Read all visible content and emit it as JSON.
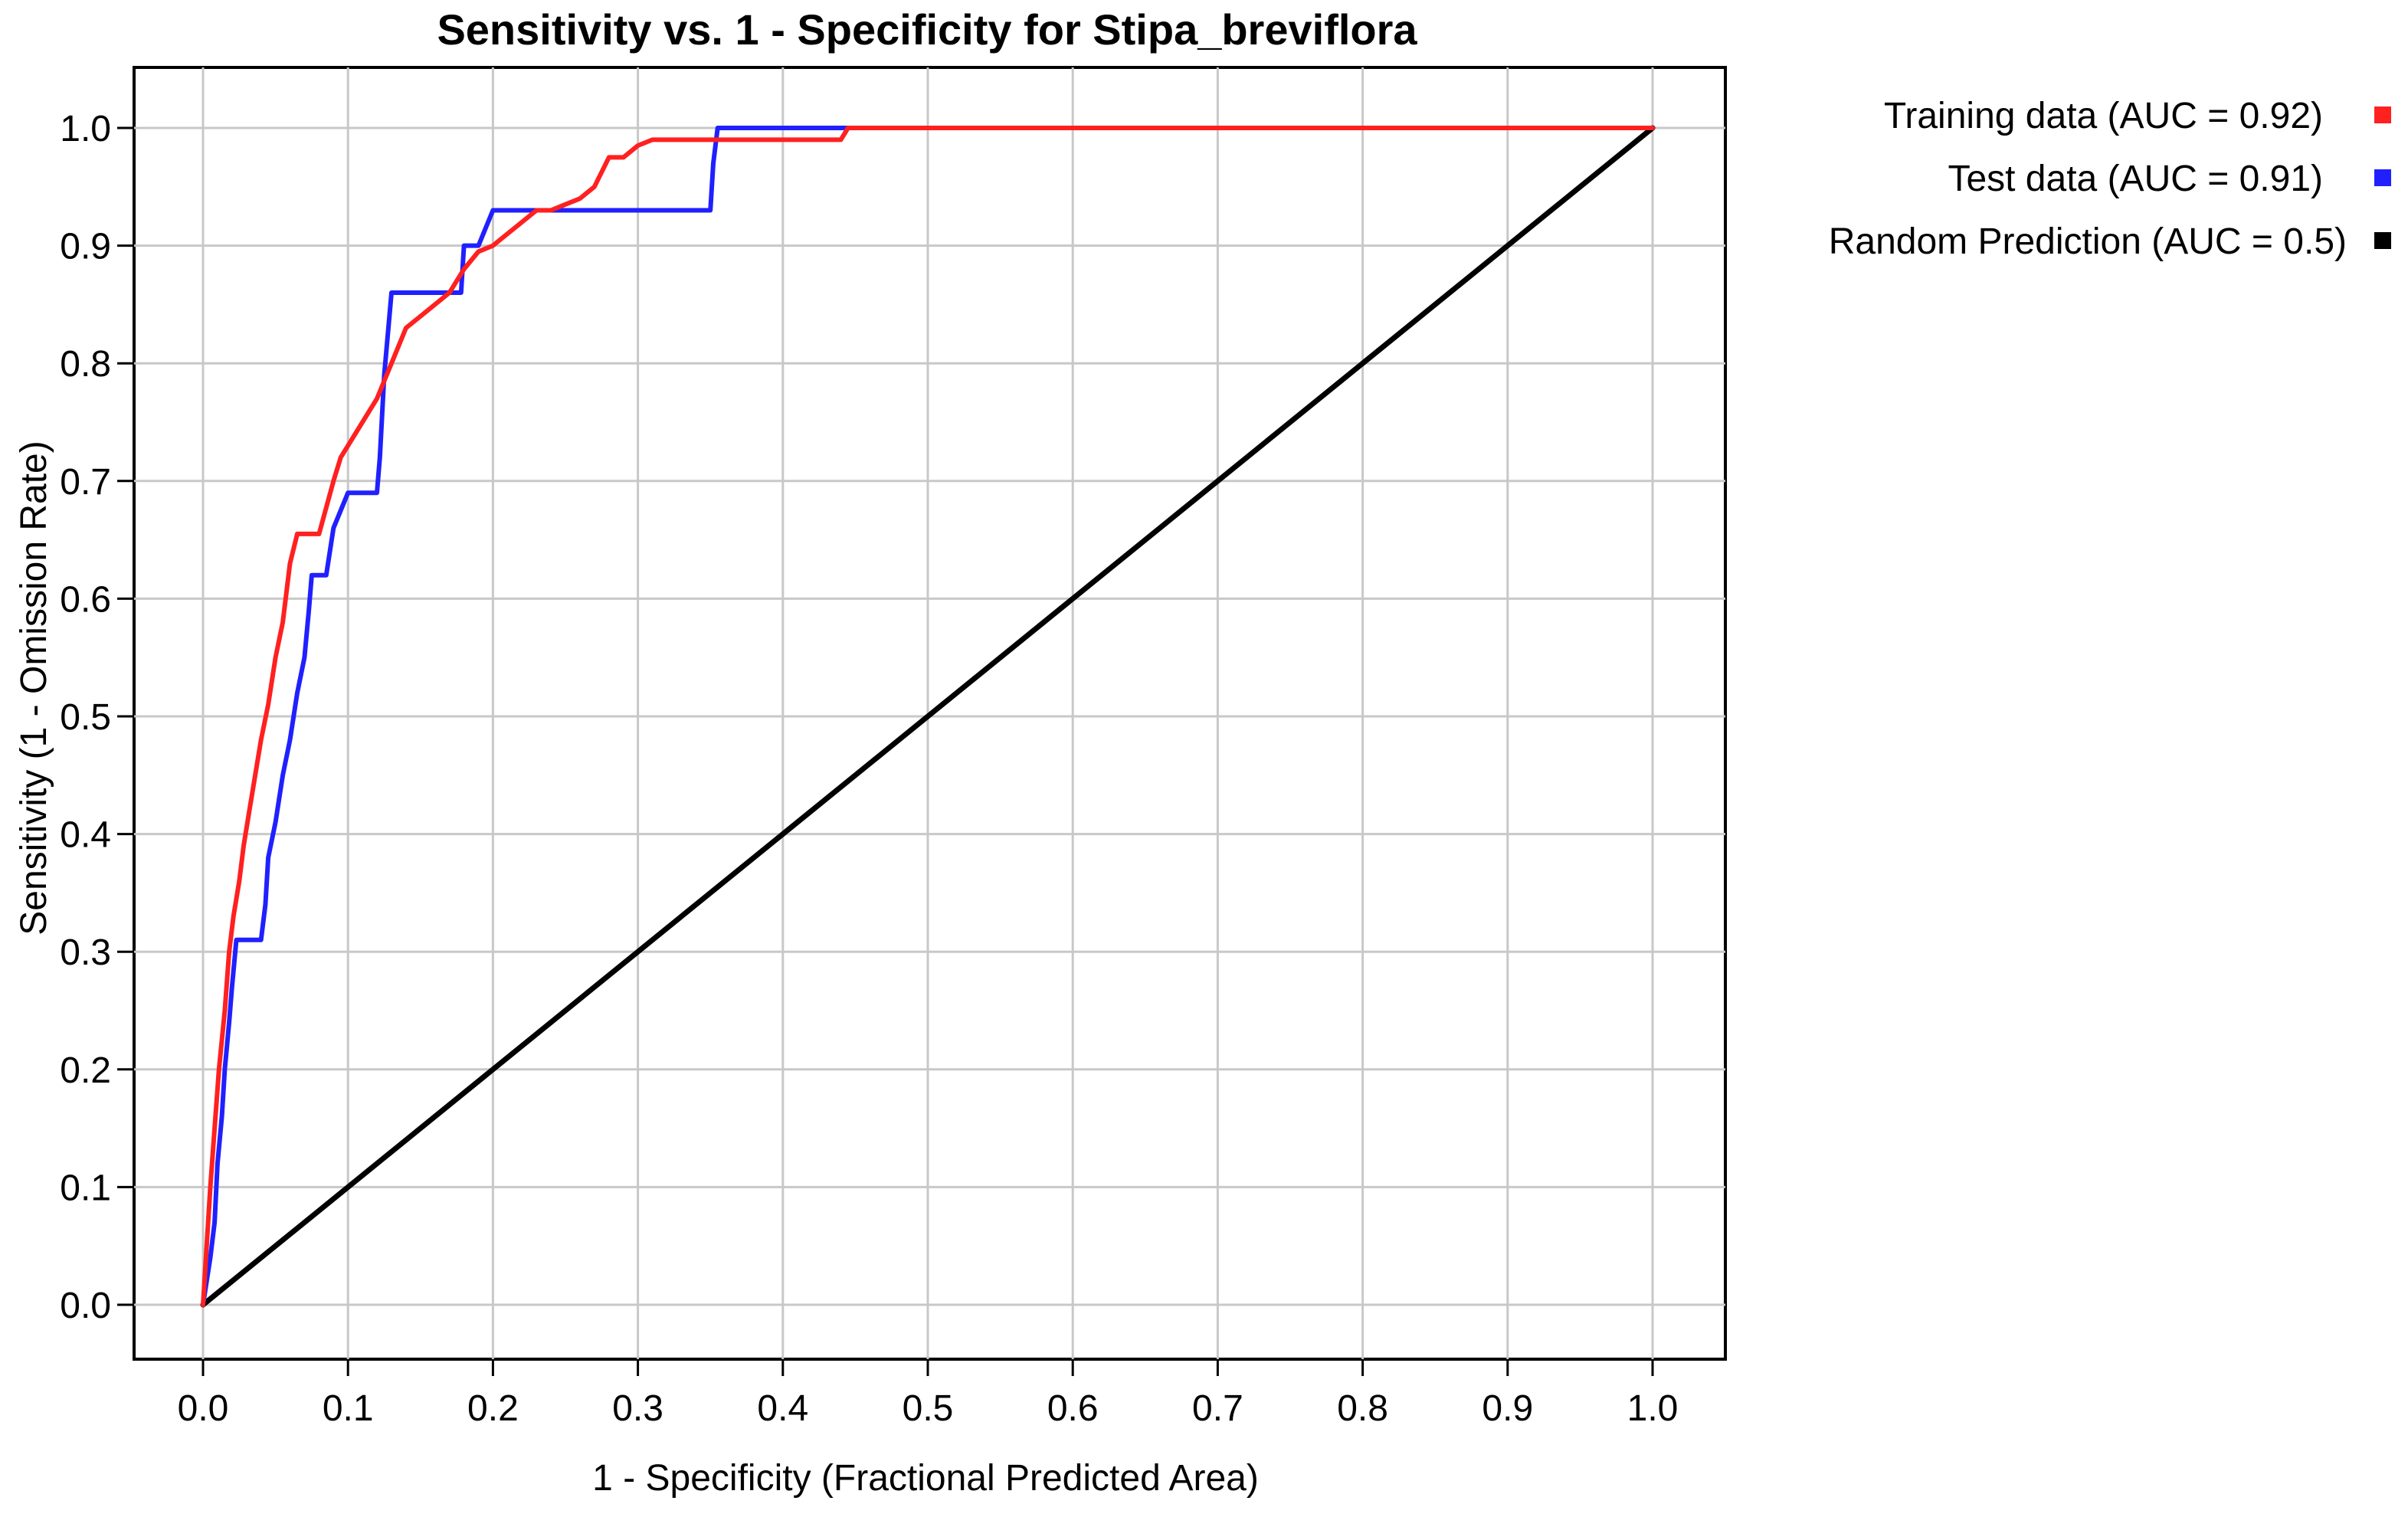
{
  "chart_data": {
    "type": "line",
    "title": "Sensitivity vs. 1 - Specificity for Stipa_breviflora",
    "xlabel": "1 - Specificity  (Fractional Predicted Area)",
    "ylabel": "Sensitivity  (1 - Omission Rate)",
    "xlim": [
      0,
      1
    ],
    "ylim": [
      0,
      1
    ],
    "x_ticks": [
      "0.0",
      "0.1",
      "0.2",
      "0.3",
      "0.4",
      "0.5",
      "0.6",
      "0.7",
      "0.8",
      "0.9",
      "1.0"
    ],
    "y_ticks": [
      "0.0",
      "0.1",
      "0.2",
      "0.3",
      "0.4",
      "0.5",
      "0.6",
      "0.7",
      "0.8",
      "0.9",
      "1.0"
    ],
    "grid": true,
    "legend_position": "right-top",
    "series": [
      {
        "name": "Training data (AUC = 0.92)",
        "color": "#ff2020",
        "x": [
          0,
          0.002,
          0.005,
          0.008,
          0.011,
          0.015,
          0.018,
          0.021,
          0.025,
          0.028,
          0.032,
          0.036,
          0.04,
          0.045,
          0.05,
          0.055,
          0.06,
          0.065,
          0.07,
          0.08,
          0.09,
          0.095,
          0.1,
          0.11,
          0.12,
          0.13,
          0.14,
          0.15,
          0.16,
          0.17,
          0.18,
          0.19,
          0.2,
          0.21,
          0.22,
          0.23,
          0.24,
          0.25,
          0.26,
          0.27,
          0.28,
          0.29,
          0.3,
          0.31,
          0.35,
          0.4,
          0.44,
          0.445,
          0.5,
          0.6,
          0.7,
          0.8,
          0.9,
          1.0
        ],
        "y": [
          0,
          0.04,
          0.1,
          0.15,
          0.2,
          0.25,
          0.3,
          0.33,
          0.36,
          0.39,
          0.42,
          0.45,
          0.48,
          0.51,
          0.55,
          0.58,
          0.63,
          0.655,
          0.655,
          0.655,
          0.7,
          0.72,
          0.73,
          0.75,
          0.77,
          0.8,
          0.83,
          0.84,
          0.85,
          0.86,
          0.88,
          0.895,
          0.9,
          0.91,
          0.92,
          0.93,
          0.93,
          0.935,
          0.94,
          0.95,
          0.975,
          0.975,
          0.985,
          0.99,
          0.99,
          0.99,
          0.99,
          1.0,
          1.0,
          1.0,
          1.0,
          1.0,
          1.0,
          1.0
        ]
      },
      {
        "name": "Test data (AUC = 0.91)",
        "color": "#2020ff",
        "x": [
          0,
          0.005,
          0.008,
          0.01,
          0.013,
          0.015,
          0.018,
          0.02,
          0.023,
          0.025,
          0.04,
          0.043,
          0.045,
          0.05,
          0.055,
          0.06,
          0.065,
          0.07,
          0.073,
          0.075,
          0.085,
          0.09,
          0.1,
          0.12,
          0.122,
          0.125,
          0.13,
          0.17,
          0.178,
          0.18,
          0.19,
          0.2,
          0.3,
          0.35,
          0.352,
          0.355,
          0.44,
          1.0
        ],
        "y": [
          0,
          0.04,
          0.07,
          0.12,
          0.16,
          0.2,
          0.24,
          0.27,
          0.31,
          0.31,
          0.31,
          0.34,
          0.38,
          0.41,
          0.45,
          0.48,
          0.52,
          0.55,
          0.59,
          0.62,
          0.62,
          0.66,
          0.69,
          0.69,
          0.72,
          0.79,
          0.86,
          0.86,
          0.86,
          0.9,
          0.9,
          0.93,
          0.93,
          0.93,
          0.97,
          1.0,
          1.0,
          1.0
        ]
      },
      {
        "name": "Random Prediction (AUC = 0.5)",
        "color": "#000000",
        "x": [
          0,
          1
        ],
        "y": [
          0,
          1
        ]
      }
    ]
  }
}
